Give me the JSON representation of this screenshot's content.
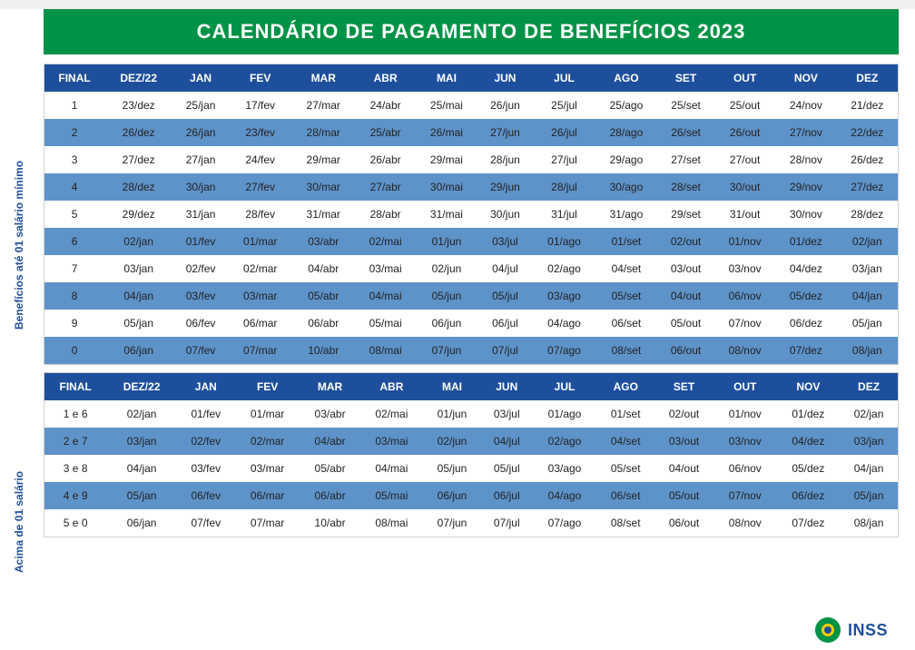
{
  "title": "CALENDÁRIO DE PAGAMENTO DE BENEFÍCIOS 2023",
  "sideLabel1": "Benefícios até 01 salário mínimo",
  "sideLabel2": "Acima de 01 salário",
  "footerBrand": "INSS",
  "colors": {
    "titleBg": "#009246",
    "headerBg": "#1e4f9c",
    "altRow": "#5e93c9",
    "text": "#222222",
    "white": "#ffffff",
    "labelColor": "#1e4f9c"
  },
  "table1": {
    "columns": [
      "FINAL",
      "DEZ/22",
      "JAN",
      "FEV",
      "MAR",
      "ABR",
      "MAI",
      "JUN",
      "JUL",
      "AGO",
      "SET",
      "OUT",
      "NOV",
      "DEZ"
    ],
    "rows": [
      [
        "1",
        "23/dez",
        "25/jan",
        "17/fev",
        "27/mar",
        "24/abr",
        "25/mai",
        "26/jun",
        "25/jul",
        "25/ago",
        "25/set",
        "25/out",
        "24/nov",
        "21/dez"
      ],
      [
        "2",
        "26/dez",
        "26/jan",
        "23/fev",
        "28/mar",
        "25/abr",
        "26/mai",
        "27/jun",
        "26/jul",
        "28/ago",
        "26/set",
        "26/out",
        "27/nov",
        "22/dez"
      ],
      [
        "3",
        "27/dez",
        "27/jan",
        "24/fev",
        "29/mar",
        "26/abr",
        "29/mai",
        "28/jun",
        "27/jul",
        "29/ago",
        "27/set",
        "27/out",
        "28/nov",
        "26/dez"
      ],
      [
        "4",
        "28/dez",
        "30/jan",
        "27/fev",
        "30/mar",
        "27/abr",
        "30/mai",
        "29/jun",
        "28/jul",
        "30/ago",
        "28/set",
        "30/out",
        "29/nov",
        "27/dez"
      ],
      [
        "5",
        "29/dez",
        "31/jan",
        "28/fev",
        "31/mar",
        "28/abr",
        "31/mai",
        "30/jun",
        "31/jul",
        "31/ago",
        "29/set",
        "31/out",
        "30/nov",
        "28/dez"
      ],
      [
        "6",
        "02/jan",
        "01/fev",
        "01/mar",
        "03/abr",
        "02/mai",
        "01/jun",
        "03/jul",
        "01/ago",
        "01/set",
        "02/out",
        "01/nov",
        "01/dez",
        "02/jan"
      ],
      [
        "7",
        "03/jan",
        "02/fev",
        "02/mar",
        "04/abr",
        "03/mai",
        "02/jun",
        "04/jul",
        "02/ago",
        "04/set",
        "03/out",
        "03/nov",
        "04/dez",
        "03/jan"
      ],
      [
        "8",
        "04/jan",
        "03/fev",
        "03/mar",
        "05/abr",
        "04/mai",
        "05/jun",
        "05/jul",
        "03/ago",
        "05/set",
        "04/out",
        "06/nov",
        "05/dez",
        "04/jan"
      ],
      [
        "9",
        "05/jan",
        "06/fev",
        "06/mar",
        "06/abr",
        "05/mai",
        "06/jun",
        "06/jul",
        "04/ago",
        "06/set",
        "05/out",
        "07/nov",
        "06/dez",
        "05/jan"
      ],
      [
        "0",
        "06/jan",
        "07/fev",
        "07/mar",
        "10/abr",
        "08/mai",
        "07/jun",
        "07/jul",
        "07/ago",
        "08/set",
        "06/out",
        "08/nov",
        "07/dez",
        "08/jan"
      ]
    ]
  },
  "table2": {
    "columns": [
      "FINAL",
      "DEZ/22",
      "JAN",
      "FEV",
      "MAR",
      "ABR",
      "MAI",
      "JUN",
      "JUL",
      "AGO",
      "SET",
      "OUT",
      "NOV",
      "DEZ"
    ],
    "rows": [
      [
        "1 e 6",
        "02/jan",
        "01/fev",
        "01/mar",
        "03/abr",
        "02/mai",
        "01/jun",
        "03/jul",
        "01/ago",
        "01/set",
        "02/out",
        "01/nov",
        "01/dez",
        "02/jan"
      ],
      [
        "2 e 7",
        "03/jan",
        "02/fev",
        "02/mar",
        "04/abr",
        "03/mai",
        "02/jun",
        "04/jul",
        "02/ago",
        "04/set",
        "03/out",
        "03/nov",
        "04/dez",
        "03/jan"
      ],
      [
        "3 e 8",
        "04/jan",
        "03/fev",
        "03/mar",
        "05/abr",
        "04/mai",
        "05/jun",
        "05/jul",
        "03/ago",
        "05/set",
        "04/out",
        "06/nov",
        "05/dez",
        "04/jan"
      ],
      [
        "4 e 9",
        "05/jan",
        "06/fev",
        "06/mar",
        "06/abr",
        "05/mai",
        "06/jun",
        "06/jul",
        "04/ago",
        "06/set",
        "05/out",
        "07/nov",
        "06/dez",
        "05/jan"
      ],
      [
        "5 e 0",
        "06/jan",
        "07/fev",
        "07/mar",
        "10/abr",
        "08/mai",
        "07/jun",
        "07/jul",
        "07/ago",
        "08/set",
        "06/out",
        "08/nov",
        "07/dez",
        "08/jan"
      ]
    ]
  }
}
